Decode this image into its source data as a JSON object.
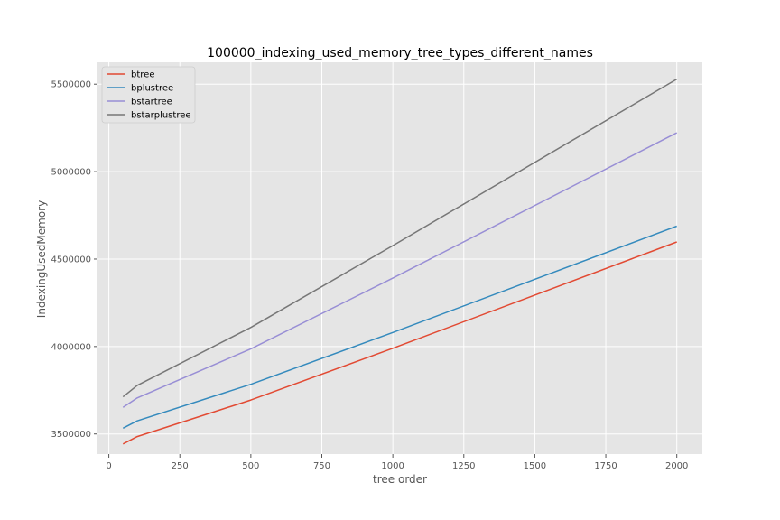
{
  "chart_data": {
    "type": "line",
    "title": "100000_indexing_used_memory_tree_types_different_names",
    "xlabel": "tree order",
    "ylabel": "IndexingUsedMemory",
    "xlim": [
      -40,
      2090
    ],
    "ylim": [
      3385000,
      5625000
    ],
    "x_ticks": [
      0,
      250,
      500,
      750,
      1000,
      1250,
      1500,
      1750,
      2000
    ],
    "y_ticks": [
      3500000,
      4000000,
      4500000,
      5000000,
      5500000
    ],
    "x_tick_labels": [
      "0",
      "250",
      "500",
      "750",
      "1000",
      "1250",
      "1500",
      "1750",
      "2000"
    ],
    "y_tick_labels": [
      "3500000",
      "4000000",
      "4500000",
      "5000000",
      "5500000"
    ],
    "grid": true,
    "legend_position": "top-left",
    "x": [
      50,
      100,
      500,
      1000,
      2000
    ],
    "series": [
      {
        "name": "btree",
        "color": "#E24A33",
        "values": [
          3443000,
          3485000,
          3694000,
          3990000,
          4598000
        ]
      },
      {
        "name": "bplustree",
        "color": "#348ABD",
        "values": [
          3533000,
          3575000,
          3784000,
          4080000,
          4688000
        ]
      },
      {
        "name": "bstartree",
        "color": "#988ED5",
        "values": [
          3652000,
          3706000,
          3987000,
          4391000,
          5222000
        ]
      },
      {
        "name": "bstarplustree",
        "color": "#777777",
        "values": [
          3712000,
          3778000,
          4109000,
          4577000,
          5529000
        ]
      }
    ]
  }
}
